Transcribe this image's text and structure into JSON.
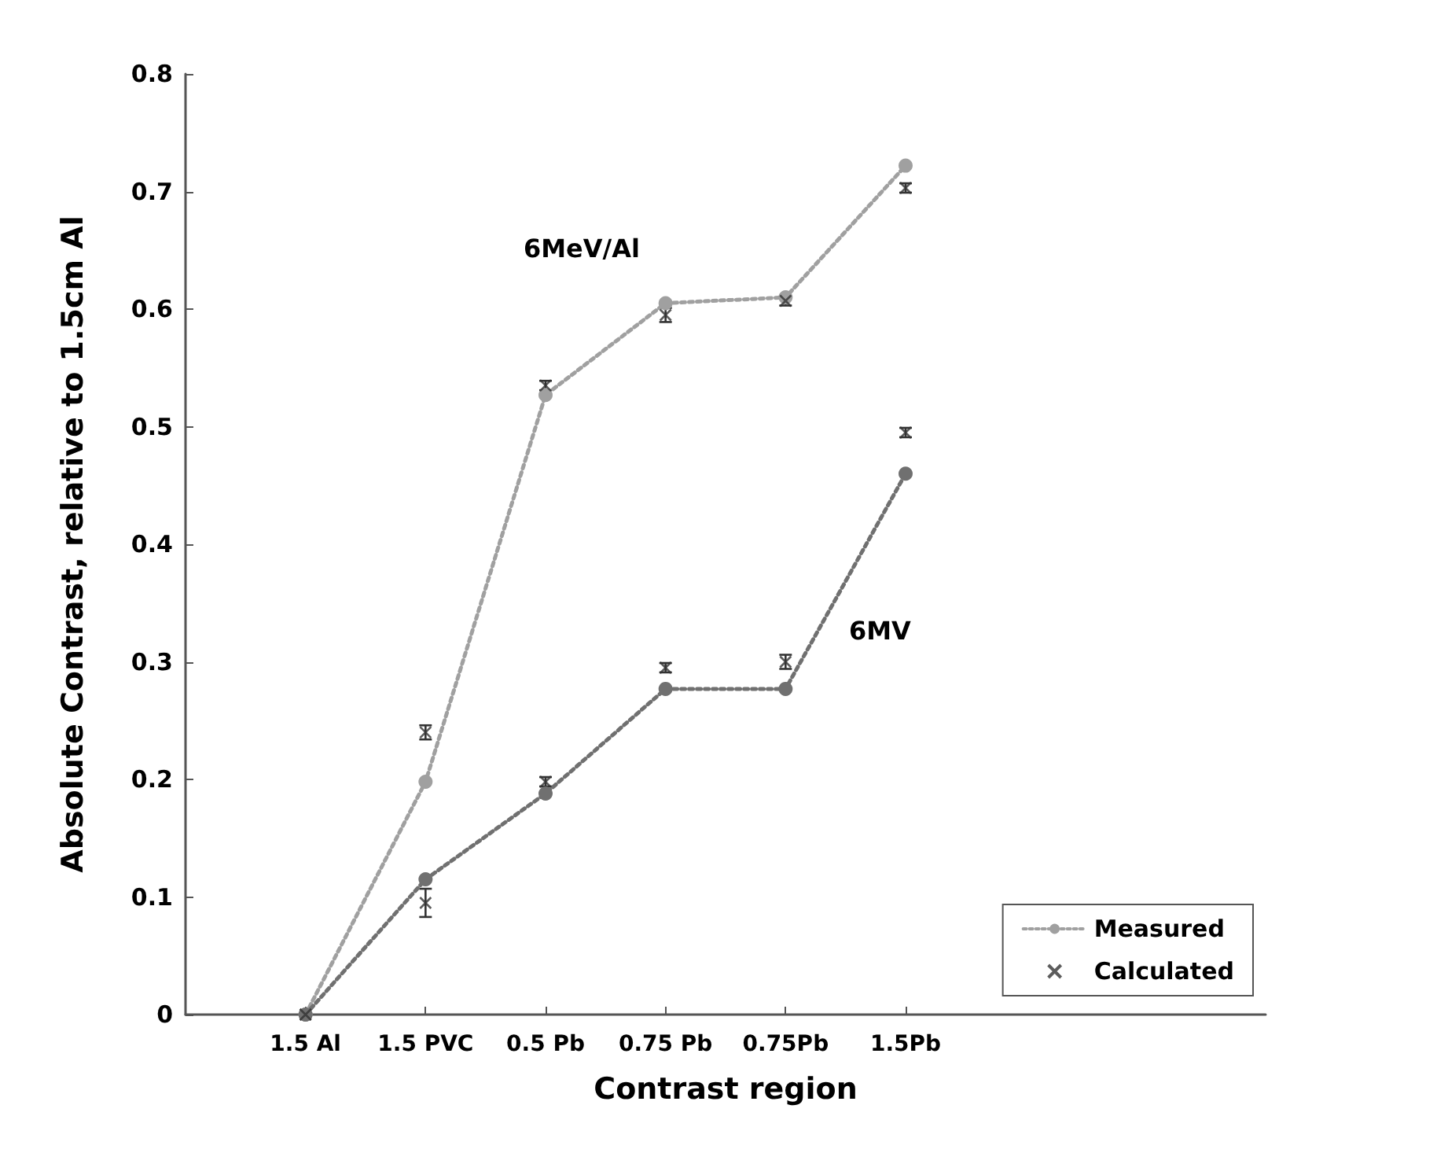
{
  "chart_data": {
    "type": "line",
    "xlabel": "Contrast region",
    "ylabel": "Absolute Contrast, relative to 1.5cm Al",
    "categories": [
      null,
      "1.5 Al",
      "1.5 PVC",
      "0.5 Pb",
      "0.75 Pb",
      "0.75Pb",
      "1.5Pb",
      null,
      null,
      null
    ],
    "series": [
      {
        "name": "Measured",
        "color": "#a0a0a0",
        "marker": "circle",
        "line_style": "dotted",
        "values": [
          null,
          0,
          0.198,
          0.527,
          0.605,
          0.61,
          0.722,
          null,
          null,
          null
        ]
      },
      {
        "name": "Calculated",
        "type": "scatter",
        "color": "#333333",
        "marker": "cross",
        "values": [
          null,
          0,
          0.24,
          0.535,
          0.595,
          0.607,
          0.703,
          null,
          null,
          null
        ],
        "errors": [
          null,
          null,
          0.006,
          0.004,
          0.006,
          0.004,
          0.004,
          null,
          null,
          null
        ]
      },
      {
        "color": "#707070",
        "marker": "circle",
        "line_style": "dotted",
        "values": [
          null,
          0,
          0.115,
          0.188,
          0.277,
          0.277,
          0.46,
          null,
          null,
          null
        ]
      },
      {
        "type": "scatter",
        "color": "#333333",
        "marker": "cross",
        "values": [
          null,
          0,
          0.095,
          0.198,
          0.295,
          0.3,
          0.495,
          null,
          null,
          null
        ],
        "errors": [
          null,
          null,
          0.012,
          0.004,
          0.004,
          0.006,
          0.004,
          null,
          null,
          null
        ]
      }
    ],
    "ylim": [
      0,
      0.8
    ],
    "yticks": [
      0,
      0.1,
      0.2,
      0.3,
      0.4,
      0.5,
      0.6,
      0.7,
      0.8
    ],
    "annotations": [
      "6MeV/Al",
      "6MV"
    ],
    "grid": false,
    "legend": "bottom right"
  }
}
